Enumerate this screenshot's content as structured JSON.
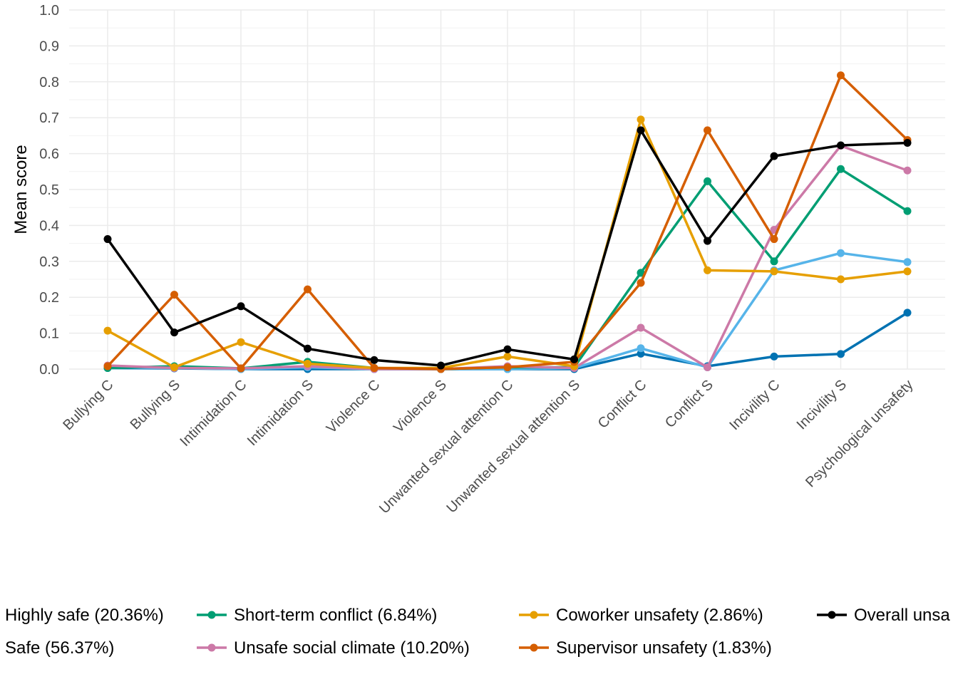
{
  "chart_data": {
    "type": "line",
    "title": "",
    "xlabel": "",
    "ylabel": "Mean score",
    "ylim": [
      0,
      1
    ],
    "yticks": [
      "0.0",
      "0.1",
      "0.2",
      "0.3",
      "0.4",
      "0.5",
      "0.6",
      "0.7",
      "0.8",
      "0.9",
      "1.0"
    ],
    "grid": true,
    "legend_position": "bottom",
    "categories": [
      "Bullying C",
      "Bullying S",
      "Intimidation C",
      "Intimidation S",
      "Violence C",
      "Violence S",
      "Unwanted sexual attention C",
      "Unwanted sexual attention S",
      "Conflict C",
      "Conflict S",
      "Incivility C",
      "Incivility S",
      "Psychological unsafety"
    ],
    "series": [
      {
        "name": "Highly safe (20.36%)",
        "color": "#0072B2",
        "values": [
          0.003,
          0.002,
          0.0,
          0.0,
          0.0,
          0.0,
          0.0,
          0.0,
          0.043,
          0.008,
          0.035,
          0.042,
          0.157
        ]
      },
      {
        "name": "Safe (56.37%)",
        "color": "#56B4E9",
        "values": [
          0.005,
          0.003,
          0.0,
          0.005,
          0.0,
          0.0,
          0.0,
          0.003,
          0.058,
          0.005,
          0.275,
          0.323,
          0.298
        ]
      },
      {
        "name": "Short-term conflict (6.84%)",
        "color": "#009E73",
        "values": [
          0.003,
          0.008,
          0.002,
          0.02,
          0.003,
          0.0,
          0.005,
          0.005,
          0.268,
          0.523,
          0.3,
          0.557,
          0.44
        ]
      },
      {
        "name": "Unsafe social climate (10.20%)",
        "color": "#CC79A7",
        "values": [
          0.01,
          0.003,
          0.002,
          0.008,
          0.0,
          0.0,
          0.008,
          0.003,
          0.115,
          0.005,
          0.388,
          0.622,
          0.553
        ]
      },
      {
        "name": "Coworker unsafety (2.86%)",
        "color": "#E69F00",
        "values": [
          0.107,
          0.005,
          0.075,
          0.015,
          0.003,
          0.003,
          0.035,
          0.008,
          0.695,
          0.275,
          0.272,
          0.25,
          0.272
        ]
      },
      {
        "name": "Supervisor unsafety (1.83%)",
        "color": "#D55E00",
        "values": [
          0.008,
          0.207,
          0.002,
          0.222,
          0.003,
          0.0,
          0.005,
          0.02,
          0.24,
          0.665,
          0.362,
          0.818,
          0.638
        ]
      },
      {
        "name": "Overall unsa",
        "color": "#000000",
        "values": [
          0.362,
          0.102,
          0.175,
          0.057,
          0.025,
          0.01,
          0.055,
          0.027,
          0.665,
          0.357,
          0.593,
          0.623,
          0.63
        ]
      }
    ]
  }
}
